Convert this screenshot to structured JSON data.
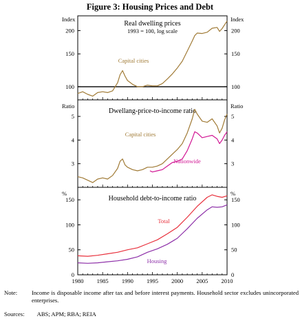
{
  "figure": {
    "title": "Figure 3: Housing Prices and Debt",
    "note_label": "Note:",
    "note_text": "Income is disposable income after tax and before interest payments. Household sector excludes unincorporated enterprises.",
    "sources_label": "Sources:",
    "sources_text": "ABS; APM; RBA; REIA"
  },
  "colors": {
    "capital": "#a07a35",
    "nationwide": "#d11593",
    "total": "#e8303c",
    "housing": "#8d2fa8"
  },
  "chart_data": [
    {
      "type": "line",
      "title": "Real dwelling prices",
      "subtitle": "1993 = 100, log scale",
      "ylabel_left": "Index",
      "ylabel_right": "Index",
      "yscale": "log",
      "ylim": [
        85,
        240
      ],
      "yticks": [
        100,
        150,
        200
      ],
      "xlim": [
        1980,
        2010
      ],
      "grid": false,
      "series": [
        {
          "name": "Capital cities",
          "color_key": "capital",
          "x": [
            1980,
            1981,
            1982,
            1983,
            1984,
            1985,
            1986,
            1987,
            1988,
            1988.5,
            1989,
            1989.5,
            1990,
            1991,
            1992,
            1993,
            1994,
            1995,
            1996,
            1997,
            1998,
            1999,
            2000,
            2001,
            2002,
            2003,
            2003.5,
            2004,
            2005,
            2006,
            2007,
            2008,
            2008.5,
            2009,
            2009.5,
            2010
          ],
          "y": [
            92,
            94,
            91,
            89,
            93,
            94,
            93,
            95,
            105,
            116,
            122,
            114,
            108,
            103,
            100,
            100,
            102,
            101,
            101,
            104,
            110,
            117,
            126,
            137,
            155,
            176,
            188,
            194,
            193,
            196,
            206,
            208,
            198,
            205,
            215,
            225
          ]
        }
      ]
    },
    {
      "type": "line",
      "title": "Dwellang-price-to-income ratio",
      "ylabel_left": "Ratio",
      "ylabel_right": "Ratio",
      "ylim": [
        2,
        5.7
      ],
      "yticks": [
        3,
        4,
        5
      ],
      "xlim": [
        1980,
        2010
      ],
      "grid": false,
      "series": [
        {
          "name": "Capital cities",
          "color_key": "capital",
          "x": [
            1980,
            1981,
            1982,
            1983,
            1984,
            1985,
            1986,
            1987,
            1988,
            1988.5,
            1989,
            1989.5,
            1990,
            1991,
            1992,
            1993,
            1994,
            1995,
            1996,
            1997,
            1998,
            1999,
            2000,
            2001,
            2002,
            2003,
            2003.5,
            2004,
            2005,
            2006,
            2007,
            2008,
            2008.5,
            2009,
            2009.5,
            2010
          ],
          "y": [
            2.45,
            2.4,
            2.3,
            2.2,
            2.35,
            2.4,
            2.35,
            2.5,
            2.8,
            3.1,
            3.2,
            2.95,
            2.85,
            2.75,
            2.7,
            2.75,
            2.85,
            2.85,
            2.9,
            3.0,
            3.2,
            3.4,
            3.6,
            3.85,
            4.3,
            4.9,
            5.3,
            5.1,
            4.8,
            4.75,
            4.9,
            4.6,
            4.3,
            4.5,
            4.85,
            5.1
          ]
        },
        {
          "name": "Nationwide",
          "color_key": "nationwide",
          "x": [
            1994.5,
            1995,
            1996,
            1997,
            1998,
            1999,
            2000,
            2001,
            2002,
            2003,
            2003.5,
            2004,
            2005,
            2006,
            2007,
            2008,
            2008.5,
            2009,
            2009.5,
            2010
          ],
          "y": [
            2.7,
            2.65,
            2.7,
            2.75,
            2.9,
            3.05,
            3.1,
            3.2,
            3.55,
            4.05,
            4.35,
            4.3,
            4.1,
            4.15,
            4.2,
            4.05,
            3.85,
            4.0,
            4.2,
            4.35
          ]
        }
      ]
    },
    {
      "type": "line",
      "title": "Household debt-to-income ratio",
      "ylabel_left": "%",
      "ylabel_right": "%",
      "ylim": [
        0,
        175
      ],
      "yticks": [
        0,
        50,
        100,
        150
      ],
      "xlim": [
        1980,
        2010
      ],
      "xticks": [
        1980,
        1985,
        1990,
        1995,
        2000,
        2005,
        2010
      ],
      "grid": false,
      "series": [
        {
          "name": "Total",
          "color_key": "total",
          "x": [
            1980,
            1982,
            1984,
            1986,
            1988,
            1990,
            1992,
            1994,
            1996,
            1998,
            2000,
            2002,
            2004,
            2006,
            2007,
            2008,
            2009,
            2010
          ],
          "y": [
            38,
            37,
            39,
            42,
            45,
            50,
            54,
            62,
            70,
            82,
            95,
            115,
            137,
            155,
            160,
            157,
            155,
            158
          ]
        },
        {
          "name": "Housing",
          "color_key": "housing",
          "x": [
            1980,
            1982,
            1984,
            1986,
            1988,
            1990,
            1992,
            1994,
            1996,
            1998,
            2000,
            2002,
            2004,
            2006,
            2007,
            2008,
            2009,
            2010
          ],
          "y": [
            24,
            23,
            24,
            26,
            28,
            31,
            36,
            45,
            52,
            61,
            73,
            92,
            113,
            130,
            136,
            135,
            136,
            140
          ]
        }
      ]
    }
  ]
}
